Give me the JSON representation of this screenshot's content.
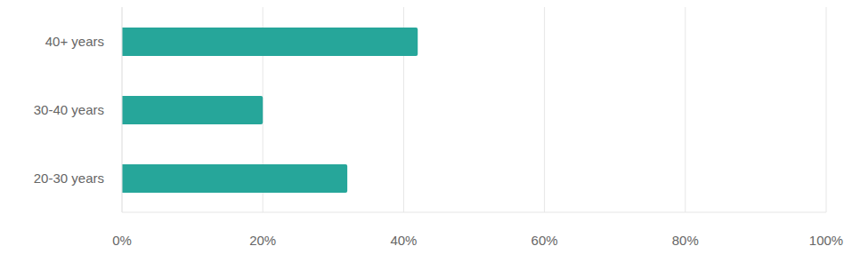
{
  "chart_data": {
    "type": "bar",
    "orientation": "horizontal",
    "categories": [
      "40+ years",
      "30-40 years",
      "20-30 years"
    ],
    "values": [
      42,
      20,
      32
    ],
    "color": "#26a69a",
    "xlim": [
      0,
      100
    ],
    "xticks": [
      {
        "value": 0,
        "label": "0%"
      },
      {
        "value": 20,
        "label": "20%"
      },
      {
        "value": 40,
        "label": "40%"
      },
      {
        "value": 60,
        "label": "60%"
      },
      {
        "value": 80,
        "label": "80%"
      },
      {
        "value": 100,
        "label": "100%"
      }
    ],
    "grid": true
  }
}
